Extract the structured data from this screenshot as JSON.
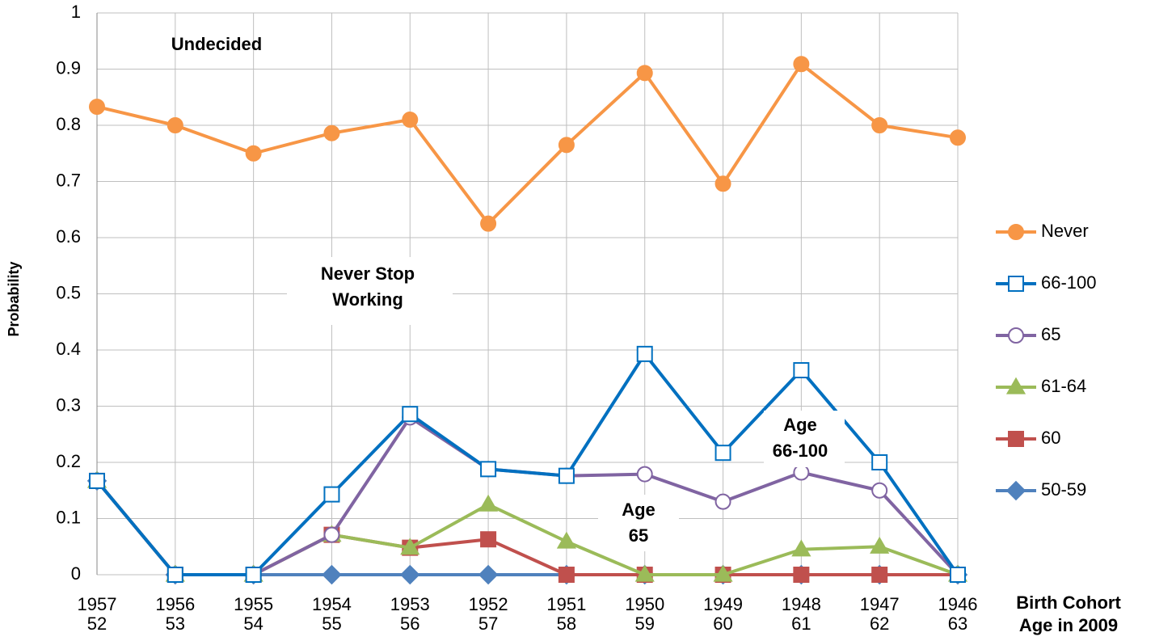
{
  "chart_data": {
    "type": "line",
    "y_label": "Probability",
    "x_label": "Birth Cohort",
    "secondary_x_label": "Age in 2009",
    "categories": [
      "1957",
      "1956",
      "1955",
      "1954",
      "1953",
      "1952",
      "1951",
      "1950",
      "1949",
      "1948",
      "1947",
      "1946"
    ],
    "secondary_categories": [
      "52",
      "53",
      "54",
      "55",
      "56",
      "57",
      "58",
      "59",
      "60",
      "61",
      "62",
      "63"
    ],
    "ylim": [
      0,
      1
    ],
    "yticks": [
      0,
      0.1,
      0.2,
      0.3,
      0.4,
      0.5,
      0.6,
      0.7,
      0.8,
      0.9,
      1
    ],
    "grid": true,
    "legend": "right",
    "annotations": [
      {
        "lines": [
          "Undecided"
        ]
      },
      {
        "lines": [
          "Never Stop",
          "Working"
        ]
      },
      {
        "lines": [
          "Age",
          "65"
        ]
      },
      {
        "lines": [
          "Age",
          "66-100"
        ]
      }
    ],
    "series": [
      {
        "name": "Never",
        "color": "#F79646",
        "marker": "circle",
        "filled": true,
        "values": [
          0.833,
          0.8,
          0.75,
          0.786,
          0.81,
          0.625,
          0.765,
          0.893,
          0.696,
          0.909,
          0.8,
          0.778
        ]
      },
      {
        "name": "66-100",
        "color": "#0070C0",
        "marker": "square",
        "filled": false,
        "values": [
          0.167,
          0,
          0,
          0.143,
          0.286,
          0.188,
          0.176,
          0.393,
          0.217,
          0.364,
          0.2,
          0
        ]
      },
      {
        "name": "65",
        "color": "#8064A2",
        "marker": "circle",
        "filled": false,
        "values": [
          0.167,
          0,
          0,
          0.071,
          0.28,
          0.188,
          0.176,
          0.179,
          0.13,
          0.182,
          0.15,
          0
        ]
      },
      {
        "name": "61-64",
        "color": "#9BBB59",
        "marker": "triangle",
        "filled": true,
        "values": [
          0.167,
          0,
          0,
          0.071,
          0.048,
          0.125,
          0.059,
          0,
          0,
          0.045,
          0.05,
          0
        ]
      },
      {
        "name": "60",
        "color": "#C0504D",
        "marker": "square",
        "filled": true,
        "values": [
          0.167,
          0,
          0,
          0.071,
          0.048,
          0.063,
          0,
          0,
          0,
          0,
          0,
          0
        ]
      },
      {
        "name": "50-59",
        "color": "#4F81BD",
        "marker": "diamond",
        "filled": true,
        "values": [
          0.167,
          0,
          0,
          0,
          0,
          0,
          0,
          0,
          0,
          0,
          0,
          0
        ]
      }
    ]
  }
}
